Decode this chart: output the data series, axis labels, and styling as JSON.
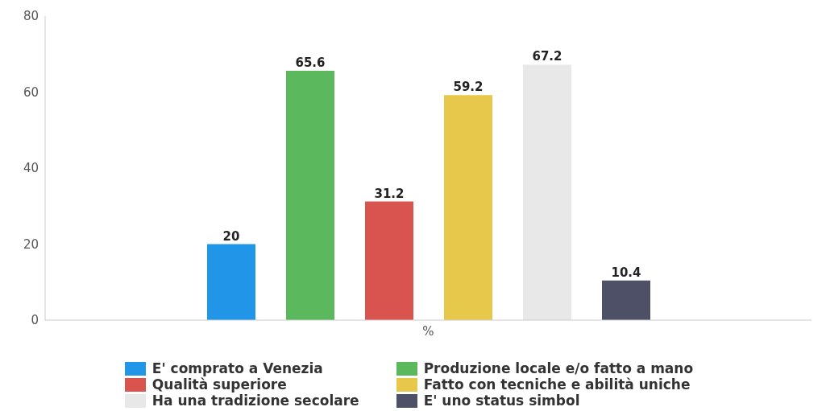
{
  "chart_data": {
    "type": "bar",
    "categories": [
      "%"
    ],
    "series": [
      {
        "name": "E' comprato a Venezia",
        "color": "#2196e8",
        "values": [
          20
        ]
      },
      {
        "name": "Produzione locale e/o fatto a mano",
        "color": "#5cb85c",
        "values": [
          65.6
        ]
      },
      {
        "name": "Qualità superiore",
        "color": "#d9534f",
        "values": [
          31.2
        ]
      },
      {
        "name": "Fatto con tecniche e abilità uniche",
        "color": "#e8c84a",
        "values": [
          59.2
        ]
      },
      {
        "name": "Ha una tradizione secolare",
        "color": "#e8e8e8",
        "values": [
          67.2
        ]
      },
      {
        "name": "E' uno status simbol",
        "color": "#4d5066",
        "values": [
          10.4
        ]
      }
    ],
    "ylim": [
      0,
      80
    ],
    "yticks": [
      0,
      20,
      40,
      60,
      80
    ],
    "grid": false,
    "legend": "bottom",
    "data_labels": true
  }
}
